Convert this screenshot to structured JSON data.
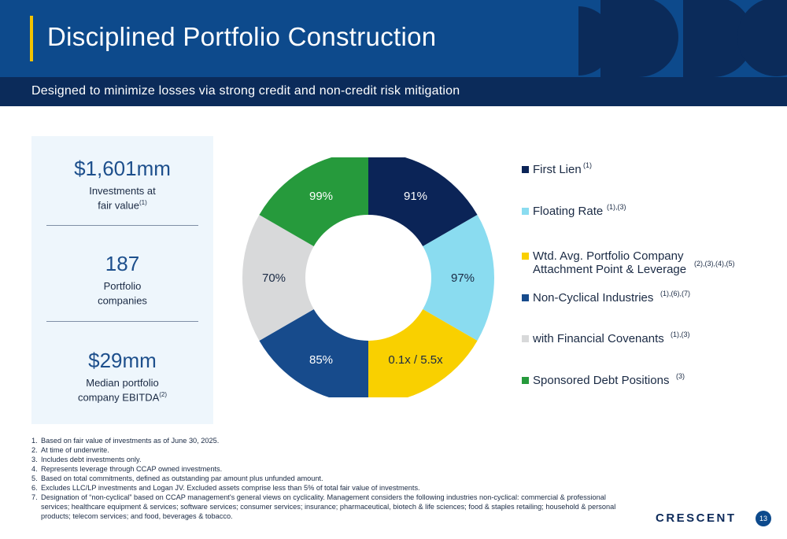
{
  "header": {
    "title": "Disciplined Portfolio Construction"
  },
  "subheader": {
    "text": "Designed to minimize losses via strong credit and non-credit risk mitigation"
  },
  "stats": [
    {
      "value": "$1,601mm",
      "label_line1": "Investments at",
      "label_line2": "fair value",
      "sup": "(1)"
    },
    {
      "value": "187",
      "label_line1": "Portfolio",
      "label_line2": "companies",
      "sup": ""
    },
    {
      "value": "$29mm",
      "label_line1": "Median portfolio",
      "label_line2": "company EBITDA",
      "sup": "(2)"
    }
  ],
  "donut_labels": [
    "91%",
    "97%",
    "0.1x / 5.5x",
    "85%",
    "70%",
    "99%"
  ],
  "legend": [
    {
      "line1": "First Lien",
      "line2": "",
      "sup": "(1)",
      "color": "#0b2457"
    },
    {
      "line1": "Floating Rate",
      "line2": "",
      "sup": "(1),(3)",
      "color": "#8adcf0"
    },
    {
      "line1": "Wtd. Avg. Portfolio Company",
      "line2": "Attachment Point & Leverage",
      "sup": "(2),(3),(4),(5)",
      "color": "#f9d000"
    },
    {
      "line1": "Non-Cyclical Industries",
      "line2": "",
      "sup": "(1),(6),(7)",
      "color": "#174b8c"
    },
    {
      "line1": "with Financial Covenants",
      "line2": "",
      "sup": "(1),(3)",
      "color": "#d8d9da"
    },
    {
      "line1": "Sponsored Debt Positions",
      "line2": "",
      "sup": "(3)",
      "color": "#269a3c"
    }
  ],
  "footnotes": [
    {
      "num": "1.",
      "text": "Based on fair value of investments as of June 30, 2025."
    },
    {
      "num": "2.",
      "text": "At time of underwrite."
    },
    {
      "num": "3.",
      "text": "Includes debt investments only."
    },
    {
      "num": "4.",
      "text": "Represents leverage through CCAP owned investments."
    },
    {
      "num": "5.",
      "text": "Based on total commitments, defined as outstanding par amount plus unfunded amount."
    },
    {
      "num": "6.",
      "text": "Excludes LLC/LP investments and Logan JV. Excluded assets comprise less than 5% of total fair value of investments."
    },
    {
      "num": "7.",
      "text": "Designation of “non-cyclical” based on CCAP management's general views on cyclicality. Management considers the following industries non-cyclical: commercial & professional services; healthcare equipment & services; software services; consumer services; insurance; pharmaceutical, biotech & life sciences; food & staples retailing; household & personal products; telecom services; and food, beverages & tobacco."
    }
  ],
  "footer": {
    "logo": "CRESCENT",
    "page": "13"
  }
}
